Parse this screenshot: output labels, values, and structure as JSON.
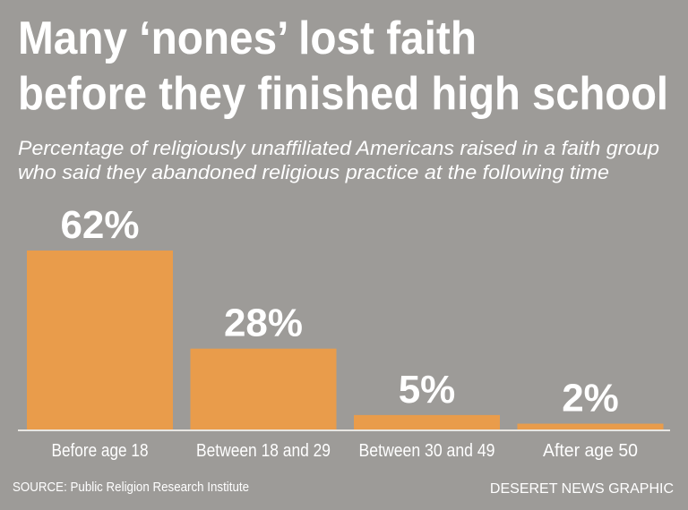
{
  "chart_data": {
    "type": "bar",
    "title": [
      "Many ‘nones’ lost faith",
      "before they finished high school"
    ],
    "subtitle": [
      "Percentage of religiously unaffiliated Americans raised in a faith group",
      "who said they abandoned religious practice at the following time"
    ],
    "categories": [
      "Before age 18",
      "Between 18 and 29",
      "Between 30 and 49",
      "After age 50"
    ],
    "values": [
      62,
      28,
      5,
      2
    ],
    "value_labels": [
      "62%",
      "28%",
      "5%",
      "2%"
    ],
    "color": "#e99c4b",
    "source": "SOURCE: Public Religion Research Institute",
    "credit": "DESERET NEWS GRAPHIC"
  }
}
